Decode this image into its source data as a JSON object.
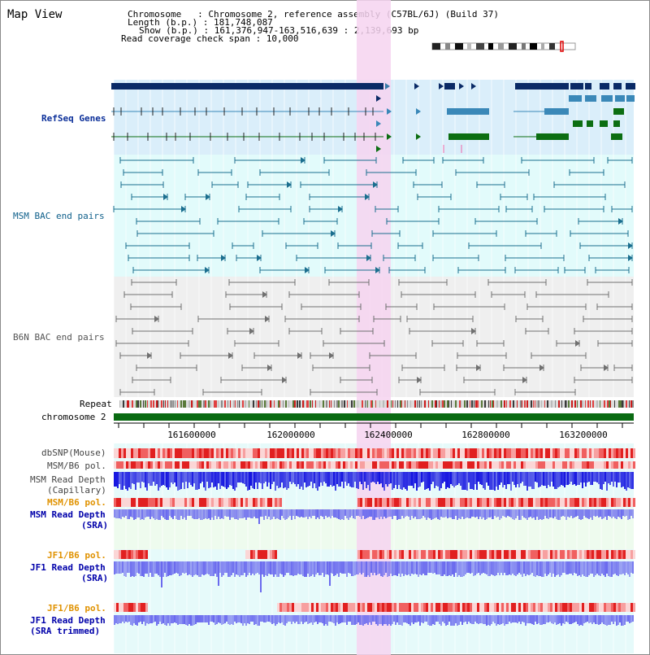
{
  "map": {
    "title": "Map View"
  },
  "header": {
    "chromosome_line": "Chromosome   : Chromosome 2, reference assembly (C57BL/6J) (Build 37)",
    "length_line": "Length (b.p.) : 181,748,087",
    "show_line": "Show (b.p.) : 161,376,947-163,516,639 : 2,139,693 bp",
    "coverage_line": "Read coverage check span : 10,000"
  },
  "tracks": {
    "refseq": "RefSeq Genes",
    "msm_bac": "MSM BAC end pairs",
    "b6n_bac": "B6N BAC end pairs",
    "repeat": "Repeat",
    "chromosome": "chromosome 2",
    "dbsnp": "dbSNP(Mouse)",
    "msm_pol_1": "MSM/B6 pol.",
    "msm_depth_cap_1": "MSM Read Depth",
    "msm_depth_cap_2": "(Capillary)",
    "msm_pol_2": "MSM/B6 pol.",
    "msm_depth_sra_1": "MSM Read Depth",
    "msm_depth_sra_2": "(SRA)",
    "jf1_pol_1": "JF1/B6 pol.",
    "jf1_depth_sra_1": "JF1 Read Depth",
    "jf1_depth_sra_2": "(SRA)",
    "jf1_pol_2": "JF1/B6 pol.",
    "jf1_depth_trim_1": "JF1 Read Depth",
    "jf1_depth_trim_2": "(SRA trimmed)"
  },
  "axis": {
    "ticks": [
      "161600000",
      "162000000",
      "162400000",
      "162800000",
      "163200000"
    ]
  },
  "colors": {
    "highlight": "#f6d4f0",
    "refseq_bg": "#daeefa",
    "msm_bg": "#e2fbfb",
    "b6n_bg": "#efefef",
    "depth_bg": "#e6fafa",
    "gene_dark": "#0a2a66",
    "gene_mid": "#3a88b8",
    "gene_green": "#0c6e12",
    "msm_line": "#1b6f8f",
    "b6n_line": "#707070",
    "chromosome_bar": "#0a6a12",
    "depth_blue": "#1414e0",
    "depth_light": "#6a6aee"
  },
  "icons": {
    "ideogram": "chromosome-ideogram",
    "arrow": "triangle-arrow"
  }
}
